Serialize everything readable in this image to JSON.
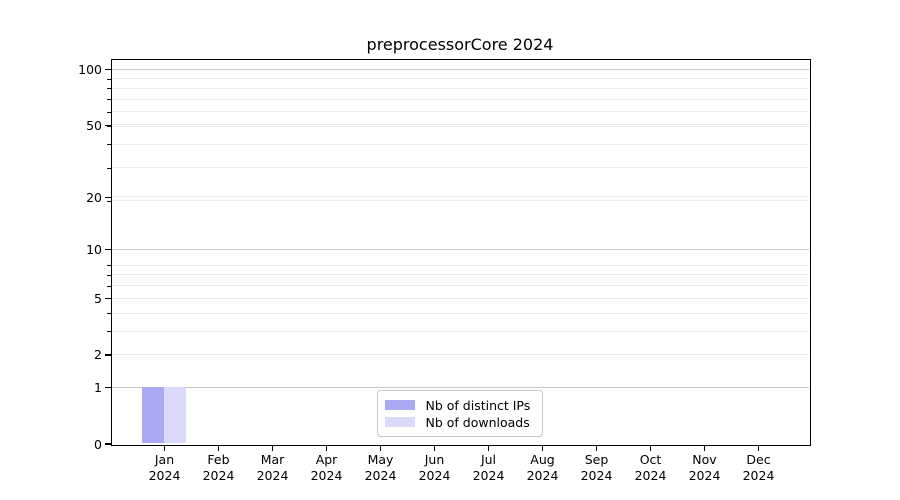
{
  "chart_data": {
    "type": "bar",
    "title": "preprocessorCore 2024",
    "year_label": "2024",
    "categories": [
      "Jan",
      "Feb",
      "Mar",
      "Apr",
      "May",
      "Jun",
      "Jul",
      "Aug",
      "Sep",
      "Oct",
      "Nov",
      "Dec"
    ],
    "series": [
      {
        "name": "Nb of distinct IPs",
        "color": "#a9a9f4",
        "values": [
          1,
          0,
          0,
          0,
          0,
          0,
          0,
          0,
          0,
          0,
          0,
          0
        ]
      },
      {
        "name": "Nb of downloads",
        "color": "#dbdbf9",
        "values": [
          1,
          0,
          0,
          0,
          0,
          0,
          0,
          0,
          0,
          0,
          0,
          0
        ]
      }
    ],
    "yscale": "log1p",
    "ylim": [
      0,
      113
    ],
    "yticks_labeled": [
      0,
      1,
      2,
      5,
      10,
      20,
      50,
      100
    ],
    "ygrid_major": [
      1,
      10,
      100
    ],
    "ygrid_minor": [
      2,
      3,
      4,
      5,
      6,
      7,
      8,
      19,
      20,
      29,
      39,
      49,
      50,
      59,
      69,
      79,
      89
    ],
    "yticks_minor_marks": [
      3,
      4,
      6,
      7,
      8,
      19,
      29,
      39,
      49,
      59,
      69,
      79,
      89
    ],
    "grid": true,
    "legend_position": "lower center"
  },
  "colors": {
    "background": "#ffffff",
    "axis": "#000000",
    "text": "#000000",
    "major_grid": "#c8c8c8",
    "minor_grid": "#ececec",
    "legend_border": "#c7c7c7"
  }
}
